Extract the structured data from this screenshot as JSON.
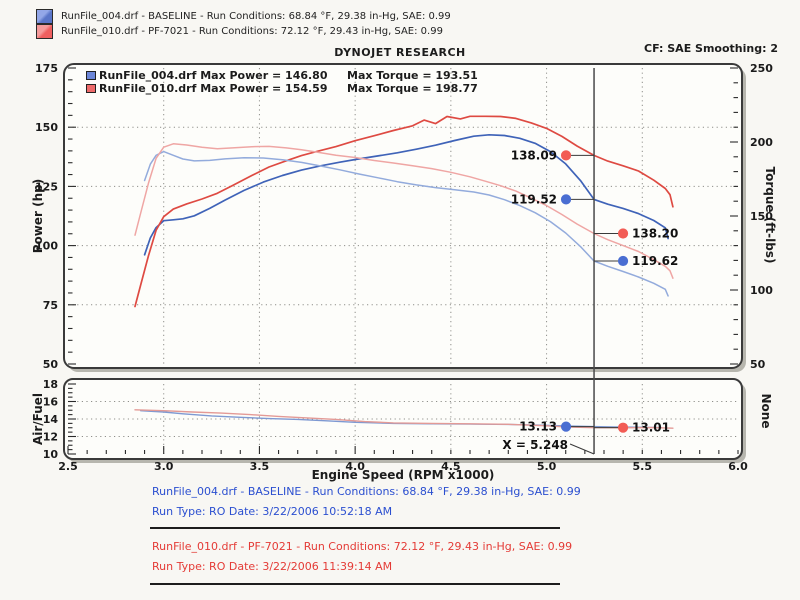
{
  "header": {
    "title": "DYNOJET RESEARCH",
    "cf_label": "CF: SAE  Smoothing: 2"
  },
  "top_legend": [
    {
      "text": "RunFile_004.drf - BASELINE  -  Run Conditions: 68.84 °F, 29.38 in-Hg, SAE: 0.99",
      "color": "#5a75c8",
      "color_light": "#93a7e8"
    },
    {
      "text": "RunFile_010.drf - PF-7021  -  Run Conditions: 72.12 °F, 29.43 in-Hg, SAE: 0.99",
      "color": "#ef5f5f",
      "color_light": "#f49b9b"
    }
  ],
  "inner_legend": [
    {
      "power_text": "RunFile_004.drf Max Power = 146.80",
      "torque_text": "Max Torque = 193.51",
      "color": "#6c86d8"
    },
    {
      "power_text": "RunFile_010.drf Max Power = 154.59",
      "torque_text": "Max Torque = 198.77",
      "color": "#ee6a6a"
    }
  ],
  "footer": {
    "runs": [
      {
        "line1": "RunFile_004.drf - BASELINE  -  Run Conditions: 68.84 °F, 29.38 in-Hg, SAE: 0.99",
        "line2": "Run Type: RO  Date: 3/22/2006 10:52:18 AM",
        "color": "#2b4fd0"
      },
      {
        "line1": "RunFile_010.drf - PF-7021  -  Run Conditions: 72.12 °F, 29.43 in-Hg, SAE: 0.99",
        "line2": "Run Type: RO  Date: 3/22/2006 11:39:14 AM",
        "color": "#e43b36"
      }
    ]
  },
  "chart_data": [
    {
      "type": "line",
      "title": "Dyno power and torque vs engine speed",
      "x_axis": {
        "label": "Engine Speed (RPM x1000)",
        "min": 2.5,
        "max": 6.0,
        "tick_labels": [
          "2.5",
          "3.0",
          "3.5",
          "4.0",
          "4.5",
          "5.0",
          "5.5",
          "6.0"
        ],
        "grid_at": [
          3.0,
          3.5,
          4.0,
          4.5,
          5.0,
          5.5
        ]
      },
      "y_left": {
        "label": "Power (hp)",
        "min": 50,
        "max": 175,
        "ticks": [
          175,
          150,
          125,
          100,
          75,
          50
        ],
        "minor_step": 5,
        "grid_at": [
          150,
          125,
          100,
          75
        ]
      },
      "y_right": {
        "label": "Torque (ft-lbs)",
        "min": 50,
        "max": 250,
        "ticks": [
          250,
          200,
          150,
          100,
          50
        ],
        "minor_step": 10
      },
      "grid": "dotted",
      "legend_position": "top-left",
      "series": [
        {
          "name": "RunFile_004.drf Power",
          "axis": "left",
          "color": "#3f63b8",
          "width": 1.7,
          "max": 146.8,
          "points": [
            [
              2.9,
              96.1
            ],
            [
              2.93,
              103.2
            ],
            [
              2.96,
              107.6
            ],
            [
              3.0,
              110.5
            ],
            [
              3.05,
              110.9
            ],
            [
              3.1,
              111.3
            ],
            [
              3.16,
              112.6
            ],
            [
              3.24,
              115.7
            ],
            [
              3.32,
              119.2
            ],
            [
              3.42,
              123.3
            ],
            [
              3.52,
              126.8
            ],
            [
              3.62,
              129.6
            ],
            [
              3.72,
              131.9
            ],
            [
              3.82,
              133.7
            ],
            [
              3.92,
              135.2
            ],
            [
              4.02,
              136.6
            ],
            [
              4.12,
              137.9
            ],
            [
              4.22,
              139.2
            ],
            [
              4.32,
              140.7
            ],
            [
              4.42,
              142.4
            ],
            [
              4.52,
              144.4
            ],
            [
              4.62,
              146.2
            ],
            [
              4.7,
              146.8
            ],
            [
              4.78,
              146.5
            ],
            [
              4.86,
              145.3
            ],
            [
              4.94,
              143.2
            ],
            [
              5.02,
              139.7
            ],
            [
              5.1,
              134.5
            ],
            [
              5.18,
              127.2
            ],
            [
              5.248,
              119.52
            ],
            [
              5.32,
              117.5
            ],
            [
              5.4,
              115.7
            ],
            [
              5.48,
              113.5
            ],
            [
              5.56,
              110.6
            ],
            [
              5.62,
              107.5
            ],
            [
              5.635,
              103.0
            ]
          ]
        },
        {
          "name": "RunFile_010.drf Power",
          "axis": "left",
          "color": "#de4a42",
          "width": 1.7,
          "max": 154.59,
          "points": [
            [
              2.85,
              74.3
            ],
            [
              2.88,
              83.4
            ],
            [
              2.92,
              95.6
            ],
            [
              2.96,
              106.5
            ],
            [
              3.0,
              112.2
            ],
            [
              3.05,
              115.4
            ],
            [
              3.12,
              117.6
            ],
            [
              3.2,
              119.7
            ],
            [
              3.28,
              122.1
            ],
            [
              3.36,
              125.4
            ],
            [
              3.46,
              129.6
            ],
            [
              3.55,
              133.2
            ],
            [
              3.64,
              135.8
            ],
            [
              3.72,
              138.0
            ],
            [
              3.8,
              139.8
            ],
            [
              3.9,
              141.8
            ],
            [
              4.0,
              144.3
            ],
            [
              4.1,
              146.4
            ],
            [
              4.2,
              148.6
            ],
            [
              4.3,
              150.6
            ],
            [
              4.36,
              153.0
            ],
            [
              4.42,
              151.5
            ],
            [
              4.48,
              154.5
            ],
            [
              4.55,
              153.5
            ],
            [
              4.6,
              154.6
            ],
            [
              4.68,
              154.6
            ],
            [
              4.76,
              154.5
            ],
            [
              4.84,
              153.7
            ],
            [
              4.92,
              151.8
            ],
            [
              5.0,
              149.5
            ],
            [
              5.08,
              146.1
            ],
            [
              5.16,
              142.0
            ],
            [
              5.248,
              138.09
            ],
            [
              5.32,
              135.7
            ],
            [
              5.4,
              133.7
            ],
            [
              5.48,
              131.5
            ],
            [
              5.56,
              127.6
            ],
            [
              5.62,
              124.1
            ],
            [
              5.645,
              121.5
            ],
            [
              5.66,
              116.4
            ]
          ]
        },
        {
          "name": "RunFile_004.drf Torque",
          "axis": "right",
          "color": "#93abdc",
          "width": 1.5,
          "max": 193.51,
          "points": [
            [
              2.9,
              174
            ],
            [
              2.93,
              185
            ],
            [
              2.96,
              191
            ],
            [
              3.0,
              193.5
            ],
            [
              3.05,
              191
            ],
            [
              3.1,
              188.5
            ],
            [
              3.16,
              187.2
            ],
            [
              3.24,
              187.6
            ],
            [
              3.32,
              188.6
            ],
            [
              3.42,
              189.4
            ],
            [
              3.52,
              189.2
            ],
            [
              3.62,
              188
            ],
            [
              3.72,
              186.2
            ],
            [
              3.82,
              183.8
            ],
            [
              3.92,
              181.2
            ],
            [
              4.02,
              178.4
            ],
            [
              4.12,
              175.8
            ],
            [
              4.22,
              173.2
            ],
            [
              4.32,
              171
            ],
            [
              4.42,
              169.2
            ],
            [
              4.52,
              167.8
            ],
            [
              4.62,
              166.2
            ],
            [
              4.7,
              164.2
            ],
            [
              4.78,
              161
            ],
            [
              4.86,
              157
            ],
            [
              4.94,
              152.2
            ],
            [
              5.02,
              146.2
            ],
            [
              5.1,
              138.5
            ],
            [
              5.18,
              129
            ],
            [
              5.248,
              119.62
            ],
            [
              5.32,
              116
            ],
            [
              5.4,
              112.5
            ],
            [
              5.48,
              108.8
            ],
            [
              5.56,
              104.5
            ],
            [
              5.62,
              100.5
            ],
            [
              5.635,
              96
            ]
          ]
        },
        {
          "name": "RunFile_010.drf Torque",
          "axis": "right",
          "color": "#efa6a4",
          "width": 1.5,
          "max": 198.77,
          "points": [
            [
              2.85,
              137
            ],
            [
              2.88,
              152
            ],
            [
              2.92,
              172
            ],
            [
              2.96,
              189
            ],
            [
              3.0,
              196.5
            ],
            [
              3.05,
              198.8
            ],
            [
              3.12,
              198
            ],
            [
              3.2,
              196.5
            ],
            [
              3.28,
              195.5
            ],
            [
              3.36,
              196
            ],
            [
              3.46,
              196.8
            ],
            [
              3.55,
              197
            ],
            [
              3.64,
              196
            ],
            [
              3.72,
              194.8
            ],
            [
              3.8,
              193.2
            ],
            [
              3.9,
              191
            ],
            [
              4.0,
              189.5
            ],
            [
              4.1,
              187.5
            ],
            [
              4.2,
              185.8
            ],
            [
              4.3,
              184
            ],
            [
              4.4,
              182
            ],
            [
              4.5,
              179.5
            ],
            [
              4.6,
              176.5
            ],
            [
              4.68,
              173.5
            ],
            [
              4.76,
              170.5
            ],
            [
              4.84,
              166.8
            ],
            [
              4.92,
              162
            ],
            [
              5.0,
              157
            ],
            [
              5.08,
              151
            ],
            [
              5.16,
              144.5
            ],
            [
              5.248,
              138.2
            ],
            [
              5.32,
              134
            ],
            [
              5.4,
              130
            ],
            [
              5.48,
              126
            ],
            [
              5.56,
              120.5
            ],
            [
              5.62,
              116
            ],
            [
              5.645,
              113
            ],
            [
              5.66,
              108
            ]
          ]
        }
      ],
      "cursor": {
        "x": 5.248,
        "markers": [
          {
            "text": "138.09",
            "value": 138.09,
            "axis": "left",
            "side": "left",
            "color": "#f25c55"
          },
          {
            "text": "119.52",
            "value": 119.52,
            "axis": "left",
            "side": "left",
            "color": "#4a6ed2"
          },
          {
            "text": "138.20",
            "value": 138.2,
            "axis": "right",
            "side": "right",
            "color": "#f25c55"
          },
          {
            "text": "119.62",
            "value": 119.62,
            "axis": "right",
            "side": "right",
            "color": "#4a6ed2"
          }
        ]
      }
    },
    {
      "type": "line",
      "title": "Air/Fuel ratio vs engine speed",
      "x_axis": {
        "label": "Engine Speed (RPM x1000)",
        "min": 2.5,
        "max": 6.0,
        "tick_labels": [
          "2.5",
          "3.0",
          "3.5",
          "4.0",
          "4.5",
          "5.0",
          "5.5",
          "6.0"
        ],
        "grid_at": [
          3.0,
          3.5,
          4.0,
          4.5,
          5.0,
          5.5
        ]
      },
      "y_left": {
        "label": "Air/Fuel",
        "min": 10,
        "max": 18,
        "ticks": [
          18,
          16,
          14,
          12,
          10
        ],
        "minor_step": 0.5,
        "grid_at": [
          16,
          14,
          12
        ]
      },
      "y_right": {
        "label": "None",
        "ticks": []
      },
      "grid": "dotted",
      "series": [
        {
          "name": "RunFile_004.drf A/F",
          "axis": "left",
          "color": "#7e99d2",
          "width": 1.4,
          "points": [
            [
              2.88,
              14.95
            ],
            [
              3.0,
              14.8
            ],
            [
              3.1,
              14.6
            ],
            [
              3.25,
              14.35
            ],
            [
              3.4,
              14.2
            ],
            [
              3.55,
              14.05
            ],
            [
              3.7,
              13.95
            ],
            [
              3.85,
              13.8
            ],
            [
              4.0,
              13.62
            ],
            [
              4.2,
              13.5
            ],
            [
              4.4,
              13.45
            ],
            [
              4.6,
              13.42
            ],
            [
              4.8,
              13.38
            ],
            [
              5.0,
              13.28
            ],
            [
              5.1,
              13.2
            ],
            [
              5.248,
              13.13
            ],
            [
              5.35,
              13.1
            ],
            [
              5.5,
              13.05
            ],
            [
              5.6,
              13.02
            ]
          ]
        },
        {
          "name": "RunFile_010.drf A/F",
          "axis": "left",
          "color": "#e39a96",
          "width": 1.4,
          "points": [
            [
              2.85,
              15.05
            ],
            [
              3.0,
              14.95
            ],
            [
              3.15,
              14.8
            ],
            [
              3.3,
              14.68
            ],
            [
              3.45,
              14.5
            ],
            [
              3.6,
              14.3
            ],
            [
              3.75,
              14.12
            ],
            [
              3.9,
              13.95
            ],
            [
              4.05,
              13.7
            ],
            [
              4.2,
              13.55
            ],
            [
              4.4,
              13.5
            ],
            [
              4.6,
              13.45
            ],
            [
              4.8,
              13.4
            ],
            [
              5.0,
              13.22
            ],
            [
              5.1,
              13.1
            ],
            [
              5.248,
              13.01
            ],
            [
              5.4,
              13.0
            ],
            [
              5.55,
              13.02
            ],
            [
              5.66,
              12.95
            ]
          ]
        }
      ],
      "cursor": {
        "x": 5.248,
        "x_label": "X = 5.248",
        "markers": [
          {
            "text": "13.13",
            "value": 13.13,
            "axis": "left",
            "side": "left",
            "color": "#4a6ed2"
          },
          {
            "text": "13.01",
            "value": 13.01,
            "axis": "left",
            "side": "right",
            "color": "#f25c55"
          }
        ]
      }
    }
  ]
}
